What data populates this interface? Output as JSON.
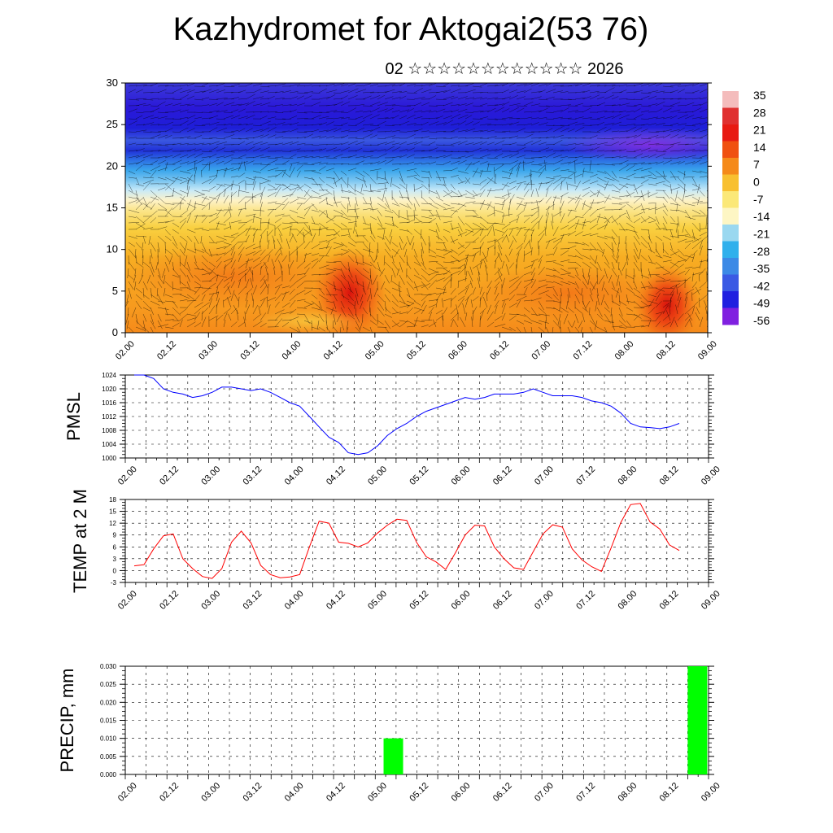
{
  "header": {
    "title": "Kazhydromet for Aktogai2(53 76)",
    "subtitle": "02 ☆☆☆☆☆☆☆☆☆☆☆☆ 2026"
  },
  "time_labels": [
    "02.00",
    "02.12",
    "03.00",
    "03.12",
    "04.00",
    "04.12",
    "05.00",
    "05.12",
    "06.00",
    "06.12",
    "07.00",
    "07.12",
    "08.00",
    "08.12",
    "09.00"
  ],
  "chart_data": [
    {
      "type": "heatmap",
      "name": "temperature-wind-cross-section",
      "x_labels": [
        "02.00",
        "02.12",
        "03.00",
        "03.12",
        "04.00",
        "04.12",
        "05.00",
        "05.12",
        "06.00",
        "06.12",
        "07.00",
        "07.12",
        "08.00",
        "08.12",
        "09.00"
      ],
      "y_ticks": [
        0,
        5,
        10,
        15,
        20,
        25,
        30
      ],
      "ylim": [
        0,
        30
      ],
      "colorbar": {
        "labels": [
          "35",
          "28",
          "21",
          "14",
          "7",
          "0",
          "-7",
          "-14",
          "-21",
          "-28",
          "-35",
          "-42",
          "-49",
          "-56"
        ],
        "colors": [
          "#f4bcbc",
          "#e03030",
          "#e81a12",
          "#f05010",
          "#f58a1a",
          "#f8c030",
          "#fbe878",
          "#fdf6c4",
          "#9ad8f0",
          "#30b0ec",
          "#3c8ae6",
          "#3a5ae4",
          "#2020e0",
          "#8020e0"
        ]
      }
    },
    {
      "type": "line",
      "name": "PMSL",
      "ylabel": "PMSL",
      "x_labels": [
        "02.00",
        "02.12",
        "03.00",
        "03.12",
        "04.00",
        "04.12",
        "05.00",
        "05.12",
        "06.00",
        "06.12",
        "07.00",
        "07.12",
        "08.00",
        "08.12",
        "09.00"
      ],
      "y_ticks": [
        1000,
        1004,
        1008,
        1012,
        1016,
        1020,
        1024
      ],
      "ylim": [
        1000,
        1024
      ],
      "color": "#0000ff",
      "values": [
        1024,
        1024,
        1023,
        1020,
        1019,
        1018.5,
        1017.5,
        1018,
        1019,
        1020.5,
        1020.5,
        1020,
        1019.5,
        1020,
        1019,
        1017.5,
        1016,
        1015,
        1012,
        1009,
        1006,
        1004.5,
        1001.5,
        1001,
        1001.5,
        1003.5,
        1006.5,
        1008.5,
        1010,
        1012,
        1013.5,
        1014.5,
        1015.5,
        1016.5,
        1017.5,
        1017,
        1017.5,
        1018.5,
        1018.5,
        1018.5,
        1019,
        1020,
        1019,
        1018,
        1018,
        1018,
        1017.5,
        1016.5,
        1016,
        1015,
        1013,
        1010,
        1009,
        1008.8,
        1008.5,
        1009,
        1010
      ]
    },
    {
      "type": "line",
      "name": "TEMP at 2 M",
      "ylabel": "TEMP at 2 M",
      "x_labels": [
        "02.00",
        "02.12",
        "03.00",
        "03.12",
        "04.00",
        "04.12",
        "05.00",
        "05.12",
        "06.00",
        "06.12",
        "07.00",
        "07.12",
        "08.00",
        "08.12",
        "09.00"
      ],
      "y_ticks": [
        -3,
        0,
        3,
        6,
        9,
        12,
        15,
        18
      ],
      "ylim": [
        -3,
        18
      ],
      "color": "#ff0000",
      "values": [
        1.2,
        1.5,
        5.5,
        8.8,
        9.3,
        3,
        0.5,
        -1.5,
        -2,
        0.5,
        7.2,
        10,
        7,
        1.3,
        -1,
        -1.8,
        -1.6,
        -1,
        6,
        12.5,
        12,
        7.2,
        6.9,
        6,
        7,
        9.5,
        11.5,
        13,
        12.7,
        7.2,
        3.5,
        2.2,
        0.3,
        4.5,
        9,
        11.5,
        11.3,
        6,
        3,
        0.7,
        0.3,
        4.8,
        9.3,
        11.6,
        11,
        5.5,
        2.7,
        1,
        -0.2,
        5.8,
        12.2,
        16.7,
        17,
        12.3,
        10.5,
        6.5,
        5.1
      ]
    },
    {
      "type": "bar",
      "name": "PRECIP",
      "ylabel": "PRECIP, mm",
      "x_labels": [
        "02.00",
        "02.12",
        "03.00",
        "03.12",
        "04.00",
        "04.12",
        "05.00",
        "05.12",
        "06.00",
        "06.12",
        "07.00",
        "07.12",
        "08.00",
        "08.12",
        "09.00"
      ],
      "y_ticks": [
        "0.000",
        "0.005",
        "0.010",
        "0.015",
        "0.020",
        "0.025",
        "0.030"
      ],
      "ylim": [
        0,
        0.03
      ],
      "color": "#00ff00",
      "bars": [
        {
          "x": 6.2,
          "value": 0.01
        },
        {
          "x": 13.5,
          "value": 0.03
        }
      ]
    }
  ]
}
